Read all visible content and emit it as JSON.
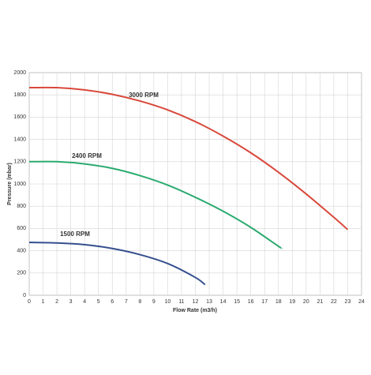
{
  "chart_data": {
    "type": "line",
    "xlabel": "Flow Rate (m3/h)",
    "ylabel": "Pressure (mbar)",
    "xlim": [
      0,
      24
    ],
    "xticks": [
      0,
      1,
      2,
      3,
      4,
      5,
      6,
      7,
      8,
      9,
      10,
      11,
      12,
      13,
      14,
      15,
      16,
      17,
      18,
      19,
      20,
      21,
      22,
      23,
      24
    ],
    "ylim": [
      0,
      2000
    ],
    "yticks": [
      0,
      200,
      400,
      600,
      800,
      1000,
      1200,
      1400,
      1600,
      1800,
      2000
    ],
    "grid": true,
    "series": [
      {
        "name": "3000 RPM",
        "color": "#d9483b",
        "x": [
          0,
          2,
          4,
          6,
          8,
          10,
          12,
          14,
          16,
          18,
          20,
          22,
          23
        ],
        "values": [
          1865,
          1865,
          1845,
          1805,
          1745,
          1665,
          1560,
          1430,
          1280,
          1105,
          910,
          700,
          590
        ]
      },
      {
        "name": "2400 RPM",
        "color": "#2bab6f",
        "x": [
          0,
          2,
          4,
          6,
          8,
          10,
          12,
          14,
          16,
          18,
          18.2
        ],
        "values": [
          1200,
          1200,
          1180,
          1140,
          1075,
          990,
          880,
          755,
          610,
          440,
          425
        ]
      },
      {
        "name": "1500 RPM",
        "color": "#354f8e",
        "x": [
          0,
          2,
          4,
          6,
          8,
          10,
          12,
          12.7
        ],
        "values": [
          475,
          470,
          455,
          420,
          365,
          285,
          160,
          95
        ]
      }
    ]
  }
}
